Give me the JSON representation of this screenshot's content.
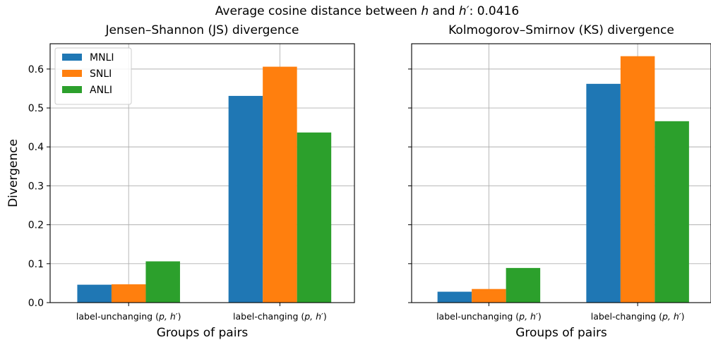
{
  "figure_title": "Average cosine distance between h and h′: 0.0416",
  "chart_data": [
    {
      "type": "bar",
      "title": "Jensen–Shannon (JS) divergence",
      "xlabel": "Groups of pairs",
      "ylabel": "Divergence",
      "categories": [
        "label-unchanging (p, h′)",
        "label-changing (p, h′)"
      ],
      "series": [
        {
          "name": "MNLI",
          "color": "#1f77b4",
          "values": [
            0.046,
            0.531
          ]
        },
        {
          "name": "SNLI",
          "color": "#ff7f0e",
          "values": [
            0.047,
            0.606
          ]
        },
        {
          "name": "ANLI",
          "color": "#2ca02c",
          "values": [
            0.106,
            0.437
          ]
        }
      ],
      "ylim": [
        0,
        0.665
      ],
      "yticks": [
        "0.0",
        "0.1",
        "0.2",
        "0.3",
        "0.4",
        "0.5",
        "0.6"
      ],
      "grid": true,
      "legend": "upper left"
    },
    {
      "type": "bar",
      "title": "Kolmogorov–Smirnov (KS) divergence",
      "xlabel": "Groups of pairs",
      "ylabel": "",
      "categories": [
        "label-unchanging (p, h′)",
        "label-changing (p, h′)"
      ],
      "series": [
        {
          "name": "MNLI",
          "color": "#1f77b4",
          "values": [
            0.028,
            0.562
          ]
        },
        {
          "name": "SNLI",
          "color": "#ff7f0e",
          "values": [
            0.035,
            0.633
          ]
        },
        {
          "name": "ANLI",
          "color": "#2ca02c",
          "values": [
            0.089,
            0.466
          ]
        }
      ],
      "ylim": [
        0,
        0.665
      ],
      "grid": true,
      "sharey": true
    }
  ]
}
